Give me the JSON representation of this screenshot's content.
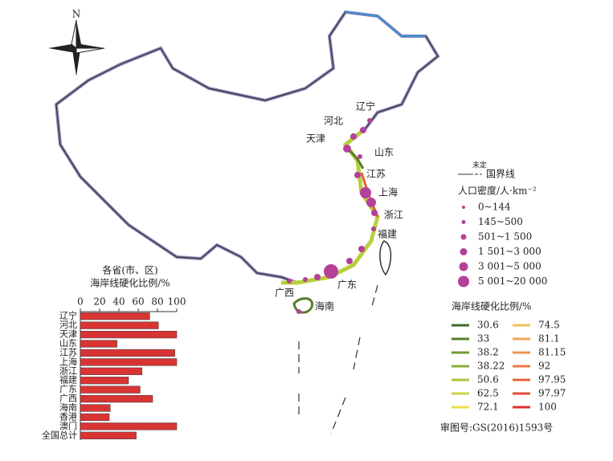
{
  "map": {
    "compass": "N",
    "provinces": [
      "辽宁",
      "河北",
      "天津",
      "山东",
      "江苏",
      "上海",
      "浙江",
      "福建",
      "广东",
      "广西",
      "海南"
    ],
    "border_legend": {
      "note": "未定",
      "label": "国界线"
    },
    "density_legend": {
      "title": "人口密度/人·km⁻²",
      "items": [
        "0~144",
        "145~500",
        "501~1 500",
        "1 501~3 000",
        "3 001~5 000",
        "5 001~20 000"
      ]
    },
    "coast_legend": {
      "title": "海岸线硬化比例/%",
      "items": [
        30.6,
        33,
        38.2,
        38.22,
        50.6,
        62.5,
        72.1,
        74.5,
        81.1,
        81.15,
        92,
        97.95,
        97.97,
        100
      ],
      "colors": [
        "#3f6b2a",
        "#557f2f",
        "#6f9a35",
        "#86ad3b",
        "#a8c43f",
        "#cbd546",
        "#e8e04c",
        "#efc24e",
        "#f0a74f",
        "#ee934a",
        "#ea7a43",
        "#e5603c",
        "#e14a37",
        "#dc3030"
      ]
    },
    "approval": "审图号:GS(2016)1593号"
  },
  "chart_data": {
    "type": "bar",
    "orientation": "horizontal",
    "title": [
      "各省(市、区)",
      "海岸线硬化比例/%"
    ],
    "categories": [
      "辽宁",
      "河北",
      "天津",
      "山东",
      "江苏",
      "上海",
      "浙江",
      "福建",
      "广东",
      "广西",
      "海南",
      "香港",
      "澳门",
      "全国总计"
    ],
    "values": [
      72,
      81,
      100,
      38,
      98,
      100,
      64,
      50,
      62,
      75,
      31,
      30,
      100,
      58
    ],
    "color": "#d93434",
    "xlim": [
      0,
      100
    ],
    "xticks": [
      0,
      20,
      40,
      60,
      80,
      100
    ]
  }
}
